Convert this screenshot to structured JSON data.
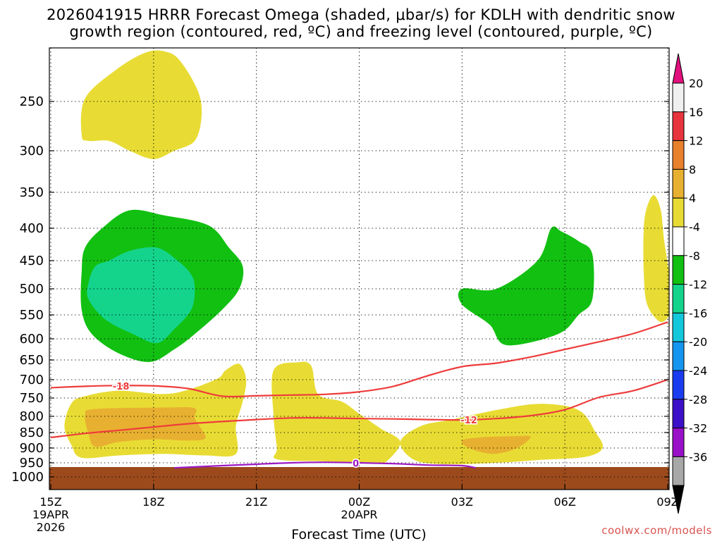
{
  "title_line1": "2026041915 HRRR Forecast Omega (shaded, μbar/s) for KDLH with dendritic snow",
  "title_line2": "growth region (contoured, red, ºC) and freezing level (contoured, purple, ºC)",
  "credit": "coolwx.com/models",
  "chart_data": {
    "type": "contour-filled time-height section",
    "xlabel": "Forecast Time (UTC)",
    "x_ticks": [
      {
        "hours": 0,
        "label": "15Z",
        "sub1": "19APR",
        "sub2": "2026"
      },
      {
        "hours": 3,
        "label": "18Z"
      },
      {
        "hours": 6,
        "label": "21Z"
      },
      {
        "hours": 9,
        "label": "00Z",
        "sub1": "20APR"
      },
      {
        "hours": 12,
        "label": "03Z"
      },
      {
        "hours": 15,
        "label": "06Z"
      },
      {
        "hours": 18,
        "label": "09Z"
      }
    ],
    "xlim_hours": [
      0,
      18
    ],
    "y_ticks_hpa": [
      250,
      300,
      350,
      400,
      450,
      500,
      550,
      600,
      650,
      700,
      750,
      800,
      850,
      900,
      950,
      1000
    ],
    "ylim_hpa": [
      200,
      1040
    ],
    "ground_hpa": 965,
    "colorbar": {
      "labels": [
        "20",
        "16",
        "12",
        "8",
        "4",
        "-4",
        "-8",
        "-12",
        "-16",
        "-20",
        "-24",
        "-28",
        "-32",
        "-36"
      ],
      "colors": [
        "#f0f0f0",
        "#e8343c",
        "#e8802c",
        "#e8b030",
        "#e8dc34",
        "#ffffff",
        "#12c012",
        "#14d48c",
        "#14c8dc",
        "#1496f0",
        "#1a3cf0",
        "#3c10c8",
        "#9a10c8",
        "#a8a8a8"
      ],
      "top_arrow": "#e0107c",
      "bottom_arrow": "#000000"
    },
    "contour_labels": {
      "dgz_upper": "-18",
      "dgz_lower": "-12",
      "freezing": "0"
    },
    "dgz_upper_line": [
      [
        0,
        722
      ],
      [
        1,
        718
      ],
      [
        2,
        716
      ],
      [
        3,
        717
      ],
      [
        4,
        724
      ],
      [
        5,
        745
      ],
      [
        6,
        744
      ],
      [
        7,
        742
      ],
      [
        8,
        740
      ],
      [
        9,
        733
      ],
      [
        10,
        718
      ],
      [
        11,
        690
      ],
      [
        12,
        667
      ],
      [
        13,
        658
      ],
      [
        14,
        643
      ],
      [
        15,
        625
      ],
      [
        16,
        607
      ],
      [
        17,
        589
      ],
      [
        18,
        565
      ]
    ],
    "dgz_lower_line": [
      [
        0,
        866
      ],
      [
        1,
        853
      ],
      [
        2,
        843
      ],
      [
        3,
        833
      ],
      [
        4,
        823
      ],
      [
        5,
        816
      ],
      [
        6,
        810
      ],
      [
        7,
        805
      ],
      [
        8,
        805
      ],
      [
        9,
        807
      ],
      [
        10,
        808
      ],
      [
        11,
        810
      ],
      [
        12,
        811
      ],
      [
        13,
        807
      ],
      [
        14,
        798
      ],
      [
        15,
        782
      ],
      [
        16,
        748
      ],
      [
        17,
        730
      ],
      [
        18,
        700
      ]
    ],
    "freezing_line": [
      [
        3.6,
        968
      ],
      [
        5,
        960
      ],
      [
        6,
        955
      ],
      [
        7,
        950
      ],
      [
        8,
        948
      ],
      [
        9,
        950
      ],
      [
        10,
        953
      ],
      [
        11,
        958
      ],
      [
        12,
        960
      ],
      [
        12.4,
        968
      ]
    ],
    "shaded_regions": [
      {
        "bin": "4 to 8",
        "color": "#e8dc34",
        "points": [
          [
            0.9,
            284
          ],
          [
            1,
            247
          ],
          [
            1.9,
            218
          ],
          [
            2.8,
            200
          ],
          [
            3.4,
            200
          ],
          [
            3.8,
            210
          ],
          [
            4.3,
            240
          ],
          [
            4.4,
            265
          ],
          [
            4.2,
            290
          ],
          [
            3.6,
            300
          ],
          [
            3,
            310
          ],
          [
            2.3,
            300
          ],
          [
            1.7,
            290
          ],
          [
            1.1,
            290
          ]
        ]
      },
      {
        "bin": "4 to 8",
        "color": "#e8dc34",
        "points": [
          [
            0.6,
            765
          ],
          [
            1,
            745
          ],
          [
            2,
            730
          ],
          [
            3.5,
            738
          ],
          [
            4.8,
            700
          ],
          [
            5.1,
            676
          ],
          [
            5.5,
            660
          ],
          [
            5.7,
            700
          ],
          [
            5.6,
            760
          ],
          [
            5.4,
            830
          ],
          [
            5.4,
            920
          ],
          [
            4.5,
            925
          ],
          [
            3.3,
            920
          ],
          [
            2,
            925
          ],
          [
            0.9,
            933
          ],
          [
            0.6,
            890
          ],
          [
            0.4,
            830
          ]
        ]
      },
      {
        "bin": "4 to 8",
        "color": "#e8dc34",
        "points": [
          [
            6.5,
            676
          ],
          [
            7.2,
            656
          ],
          [
            7.6,
            665
          ],
          [
            7.8,
            740
          ],
          [
            8.5,
            760
          ],
          [
            9,
            793
          ],
          [
            9.6,
            836
          ],
          [
            10.2,
            880
          ],
          [
            9.8,
            945
          ],
          [
            9.5,
            950
          ],
          [
            8,
            945
          ],
          [
            6.6,
            938
          ],
          [
            6.6,
            900
          ],
          [
            6.5,
            800
          ]
        ]
      },
      {
        "bin": "4 to 8",
        "color": "#e8dc34",
        "points": [
          [
            10.2,
            880
          ],
          [
            10.8,
            830
          ],
          [
            11.7,
            810
          ],
          [
            13.1,
            781
          ],
          [
            14.3,
            766
          ],
          [
            15.4,
            783
          ],
          [
            15.9,
            850
          ],
          [
            16.1,
            900
          ],
          [
            15.6,
            930
          ],
          [
            14.3,
            940
          ],
          [
            13,
            950
          ],
          [
            11.5,
            955
          ],
          [
            10.6,
            940
          ]
        ]
      },
      {
        "bin": "4 to 8",
        "color": "#e8dc34",
        "points": [
          [
            17.6,
            354
          ],
          [
            17.8,
            375
          ],
          [
            17.9,
            420
          ],
          [
            18.1,
            490
          ],
          [
            18.2,
            520
          ],
          [
            18.1,
            545
          ],
          [
            17.8,
            565
          ],
          [
            17.4,
            530
          ],
          [
            17.3,
            470
          ],
          [
            17.3,
            400
          ],
          [
            17.4,
            370
          ]
        ]
      },
      {
        "bin": "8 to 12",
        "color": "#e8b030",
        "points": [
          [
            1,
            796
          ],
          [
            1.3,
            780
          ],
          [
            3.4,
            776
          ],
          [
            4.2,
            778
          ],
          [
            4.2,
            805
          ],
          [
            4.4,
            840
          ],
          [
            4.5,
            870
          ],
          [
            4,
            876
          ],
          [
            3,
            872
          ],
          [
            2,
            880
          ],
          [
            1.3,
            896
          ],
          [
            1.1,
            855
          ]
        ]
      },
      {
        "bin": "8 to 12",
        "color": "#e8b030",
        "points": [
          [
            12,
            876
          ],
          [
            12.5,
            866
          ],
          [
            13.5,
            862
          ],
          [
            14,
            864
          ],
          [
            13.6,
            900
          ],
          [
            12.9,
            920
          ],
          [
            12.2,
            900
          ]
        ]
      },
      {
        "bin": "-8 to -4",
        "color": "#12c012",
        "points": [
          [
            1,
            430
          ],
          [
            1.5,
            400
          ],
          [
            2.3,
            375
          ],
          [
            3.3,
            382
          ],
          [
            4.6,
            396
          ],
          [
            5.2,
            430
          ],
          [
            5.6,
            460
          ],
          [
            5.5,
            500
          ],
          [
            5,
            540
          ],
          [
            4.2,
            590
          ],
          [
            3.6,
            625
          ],
          [
            2.9,
            655
          ],
          [
            2,
            635
          ],
          [
            1.2,
            590
          ],
          [
            0.9,
            540
          ],
          [
            0.9,
            470
          ]
        ]
      },
      {
        "bin": "-8 to -4",
        "color": "#12c012",
        "points": [
          [
            14.2,
            450
          ],
          [
            14.6,
            400
          ],
          [
            14.9,
            405
          ],
          [
            15.4,
            420
          ],
          [
            15.8,
            440
          ],
          [
            15.8,
            520
          ],
          [
            15.4,
            550
          ],
          [
            14.8,
            590
          ],
          [
            13.3,
            615
          ],
          [
            12.8,
            570
          ],
          [
            12,
            530
          ],
          [
            12,
            500
          ],
          [
            13,
            500
          ]
        ]
      },
      {
        "bin": "-12 to -8",
        "color": "#14d48c",
        "points": [
          [
            1.3,
            460
          ],
          [
            1.7,
            450
          ],
          [
            2.3,
            435
          ],
          [
            3.1,
            430
          ],
          [
            3.7,
            450
          ],
          [
            4.1,
            475
          ],
          [
            4.2,
            500
          ],
          [
            4.1,
            540
          ],
          [
            3.6,
            580
          ],
          [
            3.1,
            610
          ],
          [
            2.4,
            590
          ],
          [
            1.6,
            560
          ],
          [
            1.1,
            520
          ],
          [
            1.1,
            490
          ]
        ]
      }
    ]
  }
}
